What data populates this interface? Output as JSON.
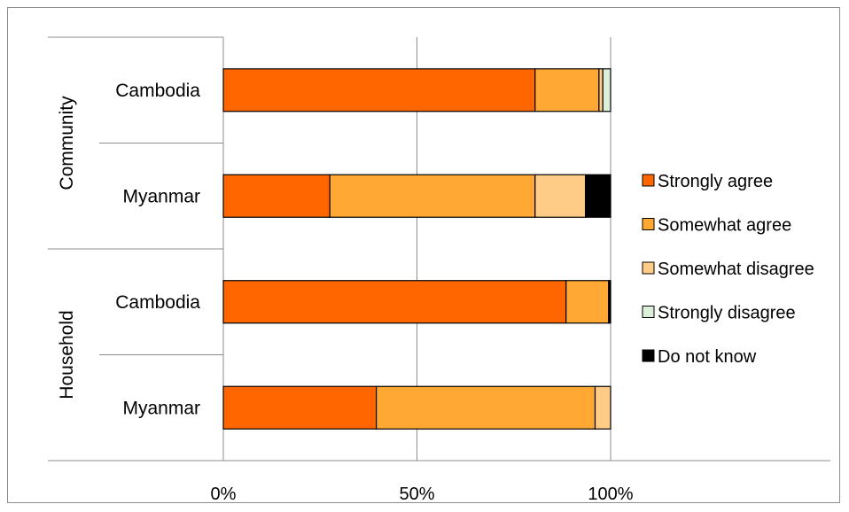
{
  "chart_data": {
    "type": "bar",
    "orientation": "horizontal",
    "stacked": "percent",
    "title": "",
    "xlabel": "",
    "ylabel": "",
    "xlim": [
      0,
      100
    ],
    "x_tick_labels": [
      "0%",
      "50%",
      "100%"
    ],
    "grid": true,
    "legend_position": "right",
    "groups": [
      "Community",
      "Household"
    ],
    "rows": [
      {
        "group": "Community",
        "category": "Cambodia"
      },
      {
        "group": "Community",
        "category": "Myanmar"
      },
      {
        "group": "Household",
        "category": "Cambodia"
      },
      {
        "group": "Household",
        "category": "Myanmar"
      }
    ],
    "categories": [
      "Cambodia",
      "Myanmar",
      "Cambodia",
      "Myanmar"
    ],
    "series": [
      {
        "name": "Strongly agree",
        "color": "#FF6600",
        "values": [
          80.5,
          27.5,
          88.5,
          39.5
        ]
      },
      {
        "name": "Somewhat agree",
        "color": "#FFA833",
        "values": [
          16.5,
          53.0,
          11.0,
          56.5
        ]
      },
      {
        "name": "Somewhat disagree",
        "color": "#FFCC88",
        "values": [
          1.0,
          13.0,
          0,
          4.0
        ]
      },
      {
        "name": "Strongly disagree",
        "color": "#DCEFD8",
        "values": [
          2.0,
          0,
          0,
          0
        ]
      },
      {
        "name": "Do not know",
        "color": "#000000",
        "values": [
          0,
          6.5,
          0.5,
          0
        ]
      }
    ]
  }
}
